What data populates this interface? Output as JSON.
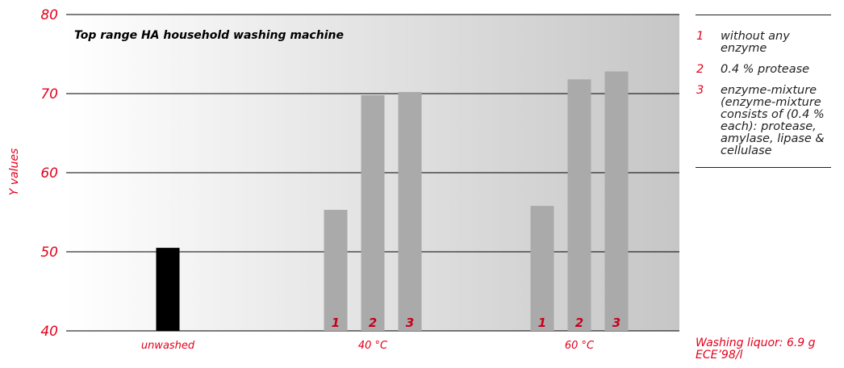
{
  "chart_data": {
    "type": "bar",
    "title": "Top range HA household washing machine",
    "ylabel": "Y values",
    "ylim": [
      40,
      80
    ],
    "yticks": [
      "40",
      "50",
      "60",
      "70",
      "80"
    ],
    "grid": true,
    "groups": [
      {
        "label": "unwashed",
        "bars": [
          {
            "number": "",
            "value": 50.5,
            "color": "#000000"
          }
        ]
      },
      {
        "label": "40 °C",
        "bars": [
          {
            "number": "1",
            "value": 55.3,
            "color": "#aaaaaa"
          },
          {
            "number": "2",
            "value": 69.8,
            "color": "#aaaaaa"
          },
          {
            "number": "3",
            "value": 70.2,
            "color": "#aaaaaa"
          }
        ]
      },
      {
        "label": "60 °C",
        "bars": [
          {
            "number": "1",
            "value": 55.8,
            "color": "#aaaaaa"
          },
          {
            "number": "2",
            "value": 71.8,
            "color": "#aaaaaa"
          },
          {
            "number": "3",
            "value": 72.8,
            "color": "#aaaaaa"
          }
        ]
      }
    ],
    "legend": [
      {
        "number": "1",
        "text": "without any enzyme"
      },
      {
        "number": "2",
        "text": "0.4 % protease"
      },
      {
        "number": "3",
        "text": "enzyme-mixture (enzyme-mixture consists of (0.4 % each): protease, amylase, lipase & cellulase"
      }
    ],
    "note": "Washing liquor: 6.9 g ECE’98/l",
    "colors": {
      "accent": "#e3001b",
      "bar": "#aaaaaa",
      "control_bar": "#000000",
      "gradient_light": "#ffffff",
      "gradient_dark": "#c6c6c6"
    }
  }
}
